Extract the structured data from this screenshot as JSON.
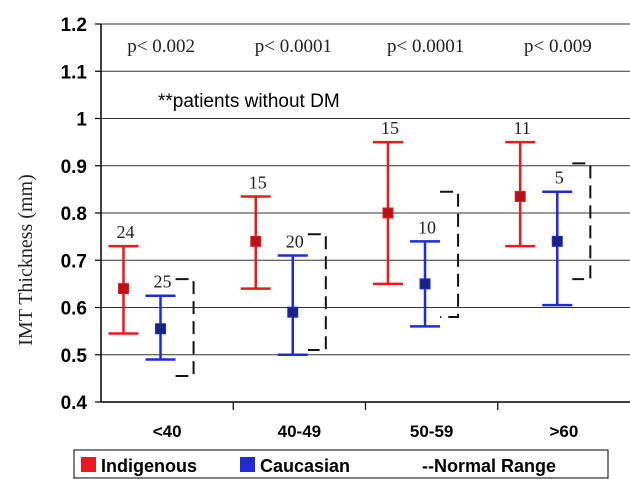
{
  "chart_data": {
    "type": "scatter",
    "ylabel": "IMT Thickness (mm)",
    "ylim": [
      0.4,
      1.2
    ],
    "yticks": [
      "0.4",
      "0.5",
      "0.6",
      "0.7",
      "0.8",
      "0.9",
      "1",
      "1.1",
      "1.2"
    ],
    "categories": [
      "<40",
      "40-49",
      "50-59",
      ">60"
    ],
    "annotation": "**patients without DM",
    "p_values": [
      "p< 0.002",
      "p< 0.0001",
      "p< 0.0001",
      "p< 0.009"
    ],
    "grid": true,
    "series": [
      {
        "name": "Indigenous",
        "color": "#e8191f",
        "mean": [
          0.64,
          0.74,
          0.8,
          0.835
        ],
        "low": [
          0.545,
          0.64,
          0.65,
          0.73
        ],
        "high": [
          0.73,
          0.835,
          0.95,
          0.95
        ],
        "n": [
          "24",
          "15",
          "15",
          "11"
        ]
      },
      {
        "name": "Caucasian",
        "color": "#1f2bd6",
        "mean": [
          0.555,
          0.59,
          0.65,
          0.74
        ],
        "low": [
          0.49,
          0.5,
          0.56,
          0.605
        ],
        "high": [
          0.625,
          0.71,
          0.74,
          0.845
        ],
        "n": [
          "25",
          "20",
          "10",
          "5"
        ]
      }
    ],
    "normal_range": {
      "low": [
        0.455,
        0.51,
        0.58,
        0.66
      ],
      "high": [
        0.66,
        0.755,
        0.845,
        0.905
      ]
    },
    "legend": {
      "placement": "bottom",
      "items": [
        "Indigenous",
        "Caucasian",
        "--Normal Range"
      ]
    }
  }
}
